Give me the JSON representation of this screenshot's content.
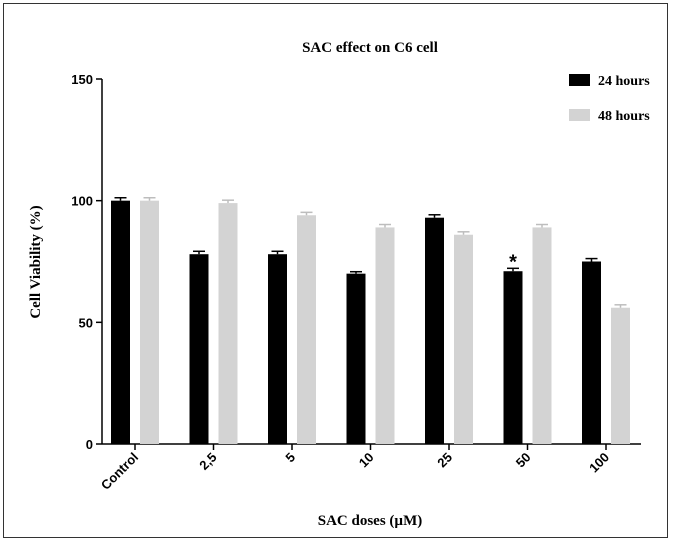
{
  "chart_data": {
    "type": "bar",
    "title": "SAC effect on C6 cell",
    "xlabel": "SAC doses (µM)",
    "ylabel": "Cell Viability (%)",
    "ylim": [
      0,
      150
    ],
    "yticks": [
      "0",
      "50",
      "100",
      "150"
    ],
    "categories": [
      "Control",
      "2,5",
      "5",
      "10",
      "25",
      "50",
      "100"
    ],
    "series": [
      {
        "name": "24 hours",
        "color": "#000000",
        "values": [
          100,
          78,
          78,
          70,
          93,
          71,
          75
        ],
        "errors": [
          1.2,
          1.2,
          1.2,
          0.8,
          1.2,
          1.2,
          1.2
        ]
      },
      {
        "name": "48 hours",
        "color": "#d3d3d3",
        "values": [
          100,
          99,
          94,
          89,
          86,
          89,
          56
        ],
        "errors": [
          1.2,
          1.2,
          1.2,
          1.2,
          1.2,
          1.2,
          1.2
        ]
      }
    ],
    "annotations": [
      {
        "text": "*",
        "series": 0,
        "category": "50"
      }
    ],
    "legend_position": "top-right",
    "grid": false
  }
}
